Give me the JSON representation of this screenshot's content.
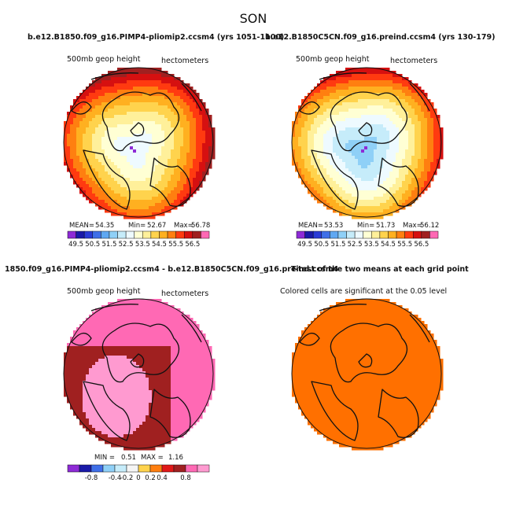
{
  "chart_data": {
    "type": "heatmap",
    "title": "SON",
    "panels": [
      {
        "id": "ctrl",
        "title": "b.e12.B1850.f09_g16.PIMP4-pliomip2.ccsm4 (yrs 1051-1100)",
        "variable": "500mb geop height",
        "units": "hectometers",
        "stats": {
          "mean_label": "MEAN=",
          "mean": "54.35",
          "min_label": "Min=",
          "min": "52.67",
          "max_label": "Max=",
          "max": "56.78"
        },
        "pattern": "abs",
        "field": {
          "center": 52.67,
          "edge": 56.78,
          "offset": [
            -0.05,
            0.08
          ],
          "spread": [
            1.0,
            1.0
          ]
        },
        "colorbar": {
          "levels": [
            49.5,
            50,
            50.5,
            51,
            51.5,
            52,
            52.5,
            53,
            53.5,
            54,
            54.5,
            55,
            55.5,
            56,
            56.5
          ],
          "labels": [
            "49.5",
            "50.5",
            "51.5",
            "52.5",
            "53.5",
            "54.5",
            "55.5",
            "56.5"
          ]
        }
      },
      {
        "id": "exp",
        "title": "b.e12.B1850C5CN.f09_g16.preind.ccsm4 (yrs 130-179)",
        "variable": "500mb geop height",
        "units": "hectometers",
        "stats": {
          "mean_label": "MEAN=",
          "mean": "53.53",
          "min_label": "Min=",
          "min": "51.73",
          "max_label": "Max=",
          "max": "56.12"
        },
        "pattern": "abs",
        "field": {
          "center": 51.73,
          "edge": 56.12,
          "offset": [
            -0.05,
            0.1
          ],
          "spread": [
            1.0,
            1.0
          ]
        },
        "colorbar": {
          "levels": [
            49.5,
            50,
            50.5,
            51,
            51.5,
            52,
            52.5,
            53,
            53.5,
            54,
            54.5,
            55,
            55.5,
            56,
            56.5
          ],
          "labels": [
            "49.5",
            "50.5",
            "51.5",
            "52.5",
            "53.5",
            "54.5",
            "55.5",
            "56.5"
          ]
        }
      },
      {
        "id": "diff",
        "title": "1850.f09_g16.PIMP4-pliomip2.ccsm4 - b.e12.B1850C5CN.f09_g16.preind.ccsm4",
        "variable": "500mb geop height",
        "units": "hectometers",
        "stats": {
          "min_label": "MIN =",
          "min": "0.51",
          "max_label": "MAX =",
          "max": "1.16"
        },
        "pattern": "diff",
        "field": {
          "background": 0.7,
          "mid": 0.9,
          "high": 1.16,
          "blob_offset": [
            -0.3,
            0.3
          ]
        },
        "colorbar": {
          "levels": [
            -1.0,
            -0.8,
            -0.6,
            -0.4,
            -0.2,
            0,
            0.2,
            0.4,
            0.6,
            0.8,
            1.0
          ],
          "labels": [
            "-0.8",
            "-0.4",
            "-0.2",
            "0",
            "0.2",
            "0.4",
            "0.8"
          ]
        }
      },
      {
        "id": "ttest",
        "title": "T-test of the two means at each grid point",
        "variable": "Colored cells are significant at the 0.05 level",
        "pattern": "sig",
        "field": {
          "fill_value": "significant"
        }
      }
    ]
  },
  "colors": {
    "abs": [
      "#8e2bd6",
      "#1a1aa8",
      "#2a3bd6",
      "#3f6fe8",
      "#5fa8f2",
      "#8fd0f7",
      "#c6ecfa",
      "#eefaff",
      "#ffffd4",
      "#fff09a",
      "#ffd34d",
      "#ffb020",
      "#ff7f10",
      "#ff3a10",
      "#d61010",
      "#a02020",
      "#ff69b4"
    ],
    "diff": [
      "#8e2bd6",
      "#1a1aa8",
      "#3f6fe8",
      "#8fd0f7",
      "#c6ecfa",
      "#f5f5f5",
      "#ffd34d",
      "#ff7f10",
      "#e01818",
      "#a02020",
      "#ff69b4",
      "#ff9ad0"
    ],
    "sig": "#ff7000",
    "continent": "#111111"
  }
}
